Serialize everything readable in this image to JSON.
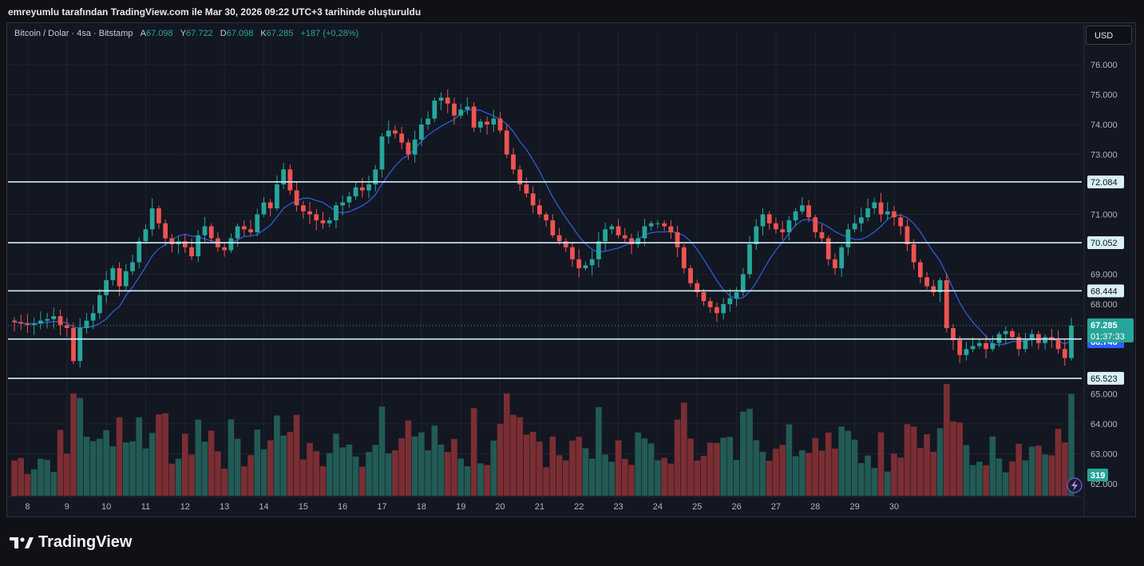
{
  "header": {
    "created_text": "emreyumlu tarafından TradingView.com ile Mar 30, 2026 09:22 UTC+3 tarihinde oluşturuldu"
  },
  "legend": {
    "symbol": "Bitcoin / Dolar · 4sa · Bitstamp",
    "open_label": "A",
    "open": "67.098",
    "high_label": "Y",
    "high": "67.722",
    "low_label": "D",
    "low": "67.098",
    "close_label": "K",
    "close": "67.285",
    "change": "+187 (+0,28%)"
  },
  "currency_button": "USD",
  "brand": "TradingView",
  "colors": {
    "background": "#131722",
    "up": "#26a69a",
    "down": "#ef5350",
    "up_volume": "#225a55",
    "down_volume": "#7a2e33",
    "ma_line": "#2f5bd8",
    "level_line": "#cfeef6",
    "price_tag": "#26a69a",
    "ma_tag": "#2962ff"
  },
  "chart_data": {
    "type": "candlestick",
    "symbol": "Bitcoin / Dolar · 4sa · Bitstamp",
    "ylim": [
      61500,
      76600
    ],
    "y_ticks": [
      {
        "value": 76000,
        "label": "76.000"
      },
      {
        "value": 75000,
        "label": "75.000"
      },
      {
        "value": 74000,
        "label": "74.000"
      },
      {
        "value": 73000,
        "label": "73.000"
      },
      {
        "value": 71000,
        "label": "71.000"
      },
      {
        "value": 69000,
        "label": "69.000"
      },
      {
        "value": 68000,
        "label": "68.000"
      },
      {
        "value": 65000,
        "label": "65.000"
      },
      {
        "value": 64000,
        "label": "64.000"
      },
      {
        "value": 63000,
        "label": "63.000"
      },
      {
        "value": 62000,
        "label": "62.000"
      }
    ],
    "x_ticks": [
      {
        "index": 2,
        "label": "8"
      },
      {
        "index": 8,
        "label": "9"
      },
      {
        "index": 14,
        "label": "10"
      },
      {
        "index": 20,
        "label": "11"
      },
      {
        "index": 26,
        "label": "12"
      },
      {
        "index": 32,
        "label": "13"
      },
      {
        "index": 38,
        "label": "14"
      },
      {
        "index": 44,
        "label": "15"
      },
      {
        "index": 50,
        "label": "16"
      },
      {
        "index": 56,
        "label": "17"
      },
      {
        "index": 62,
        "label": "18"
      },
      {
        "index": 68,
        "label": "19"
      },
      {
        "index": 74,
        "label": "20"
      },
      {
        "index": 80,
        "label": "21"
      },
      {
        "index": 86,
        "label": "22"
      },
      {
        "index": 92,
        "label": "23"
      },
      {
        "index": 98,
        "label": "24"
      },
      {
        "index": 104,
        "label": "25"
      },
      {
        "index": 110,
        "label": "26"
      },
      {
        "index": 116,
        "label": "27"
      },
      {
        "index": 122,
        "label": "28"
      },
      {
        "index": 128,
        "label": "29"
      },
      {
        "index": 134,
        "label": "30"
      }
    ],
    "levels": [
      {
        "value": 72084,
        "label": "72.084"
      },
      {
        "value": 70052,
        "label": "70.052"
      },
      {
        "value": 68444,
        "label": "68.444"
      },
      {
        "value": 66835,
        "label": "66.835"
      },
      {
        "value": 65523,
        "label": "65.523"
      }
    ],
    "last_price": {
      "value": 67285,
      "label": "67.285",
      "countdown": "01:37:33"
    },
    "ma_value": {
      "value": 66746,
      "label": "66.746"
    },
    "volume_last": {
      "label": "319"
    },
    "closes": [
      67400,
      67350,
      67300,
      67350,
      67450,
      67500,
      67600,
      67300,
      67200,
      66100,
      67200,
      67450,
      67700,
      68300,
      68800,
      69200,
      68600,
      69100,
      69400,
      70100,
      70500,
      71200,
      70700,
      70200,
      70000,
      70100,
      69900,
      69600,
      70300,
      70600,
      70200,
      69900,
      69800,
      70200,
      70600,
      70500,
      70400,
      71000,
      71400,
      71200,
      72000,
      72500,
      71800,
      71300,
      71100,
      71000,
      70800,
      70700,
      70800,
      71300,
      71400,
      71600,
      71900,
      71800,
      72000,
      72500,
      73600,
      73800,
      73700,
      73400,
      73000,
      73500,
      74000,
      74200,
      74800,
      74900,
      74700,
      74300,
      74500,
      74600,
      73900,
      74100,
      74000,
      74200,
      73800,
      73000,
      72500,
      72000,
      71700,
      71300,
      71000,
      70800,
      70300,
      70100,
      69900,
      69500,
      69200,
      69300,
      69500,
      70100,
      70500,
      70600,
      70300,
      70200,
      70000,
      70200,
      70600,
      70700,
      70700,
      70600,
      70400,
      69900,
      69200,
      68700,
      68400,
      68100,
      67900,
      67700,
      68000,
      68200,
      68400,
      69000,
      70000,
      70600,
      71000,
      70700,
      70500,
      70400,
      70800,
      71100,
      71300,
      70900,
      70400,
      70200,
      69500,
      69200,
      69900,
      70500,
      70700,
      70900,
      71200,
      71400,
      71000,
      71100,
      70900,
      70600,
      70000,
      69400,
      68900,
      68600,
      68400,
      68800,
      67200,
      66800,
      66300,
      66500,
      66600,
      66700,
      66500,
      66700,
      67000,
      67100,
      66900,
      66500,
      66800,
      67000,
      66700,
      66900,
      66800,
      66500,
      66200,
      67285
    ],
    "ma_note": "blue moving average line"
  }
}
